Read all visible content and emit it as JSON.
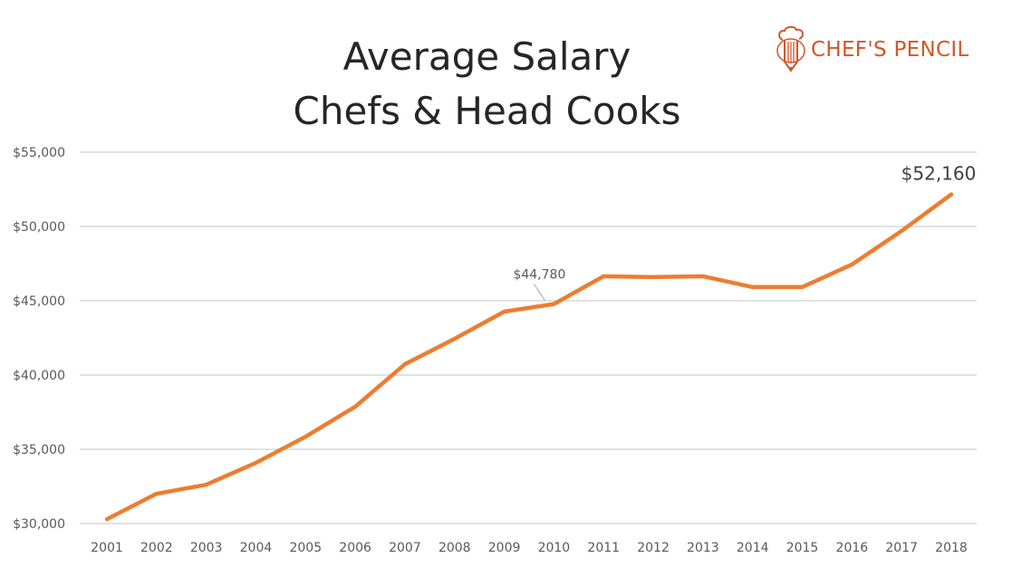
{
  "logo": {
    "text": "CHEF'S PENCIL"
  },
  "chart_data": {
    "type": "line",
    "title": [
      "Average Salary",
      "Chefs & Head Cooks"
    ],
    "xlabel": "",
    "ylabel": "",
    "x": [
      "2001",
      "2002",
      "2003",
      "2004",
      "2005",
      "2006",
      "2007",
      "2008",
      "2009",
      "2010",
      "2011",
      "2012",
      "2013",
      "2014",
      "2015",
      "2016",
      "2017",
      "2018"
    ],
    "series": [
      {
        "name": "Average Salary",
        "color": "#ed7d31",
        "values": [
          30300,
          32010,
          32620,
          34090,
          35850,
          37870,
          40730,
          42440,
          44270,
          44780,
          46650,
          46590,
          46650,
          45920,
          45920,
          47440,
          49700,
          52160
        ]
      }
    ],
    "ylim": [
      30000,
      55000
    ],
    "yticks": [
      30000,
      35000,
      40000,
      45000,
      50000,
      55000
    ],
    "ytick_labels": [
      "$30,000",
      "$35,000",
      "$40,000",
      "$45,000",
      "$50,000",
      "$55,000"
    ],
    "grid": true,
    "annotations": [
      {
        "x": "2010",
        "label": "$44,780"
      },
      {
        "x": "2018",
        "label": "$52,160"
      }
    ]
  }
}
